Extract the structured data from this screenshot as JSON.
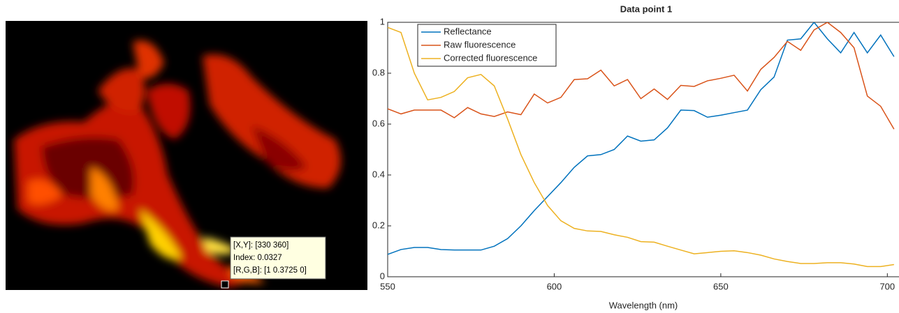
{
  "datatip": {
    "lines": [
      "[X,Y]: [330 360]",
      "Index: 0.0327",
      "[R,G,B]: [1 0.3725 0]"
    ]
  },
  "chart_data": {
    "type": "line",
    "title": "Data point 1",
    "x_label": "Wavelength (nm)",
    "x": [
      550,
      554,
      558,
      562,
      566,
      570,
      574,
      578,
      582,
      586,
      590,
      594,
      598,
      602,
      606,
      610,
      614,
      618,
      622,
      626,
      630,
      634,
      638,
      642,
      646,
      650,
      654,
      658,
      662,
      666,
      670,
      674,
      678,
      682,
      686,
      690,
      694,
      698,
      702
    ],
    "series": [
      {
        "name": "Reflectance",
        "color": "#0072bd",
        "values": [
          0.088,
          0.107,
          0.115,
          0.115,
          0.107,
          0.105,
          0.105,
          0.105,
          0.12,
          0.15,
          0.2,
          0.26,
          0.315,
          0.37,
          0.43,
          0.475,
          0.48,
          0.5,
          0.553,
          0.533,
          0.538,
          0.585,
          0.655,
          0.653,
          0.627,
          0.635,
          0.645,
          0.655,
          0.735,
          0.785,
          0.93,
          0.935,
          1.0,
          0.935,
          0.88,
          0.96,
          0.88,
          0.95,
          0.865
        ]
      },
      {
        "name": "Raw fluorescence",
        "color": "#d95319",
        "values": [
          0.66,
          0.64,
          0.655,
          0.655,
          0.655,
          0.625,
          0.665,
          0.64,
          0.63,
          0.648,
          0.637,
          0.718,
          0.683,
          0.705,
          0.775,
          0.778,
          0.812,
          0.75,
          0.775,
          0.7,
          0.738,
          0.697,
          0.752,
          0.748,
          0.77,
          0.78,
          0.792,
          0.73,
          0.815,
          0.862,
          0.925,
          0.89,
          0.97,
          1.0,
          0.96,
          0.9,
          0.71,
          0.67,
          0.58
        ]
      },
      {
        "name": "Corrected fluorescence",
        "color": "#edb120",
        "values": [
          0.98,
          0.96,
          0.8,
          0.695,
          0.705,
          0.728,
          0.782,
          0.795,
          0.75,
          0.62,
          0.48,
          0.37,
          0.28,
          0.22,
          0.19,
          0.18,
          0.178,
          0.165,
          0.155,
          0.138,
          0.136,
          0.12,
          0.105,
          0.09,
          0.095,
          0.1,
          0.102,
          0.095,
          0.085,
          0.07,
          0.06,
          0.052,
          0.052,
          0.055,
          0.055,
          0.05,
          0.04,
          0.04,
          0.048
        ]
      }
    ],
    "xlim": [
      550,
      703.5
    ],
    "xticks": [
      550,
      600,
      650,
      700
    ],
    "ylim": [
      0,
      1
    ],
    "yticks": [
      0,
      0.2,
      0.4,
      0.6,
      0.8,
      1
    ],
    "legend": "upper left"
  }
}
